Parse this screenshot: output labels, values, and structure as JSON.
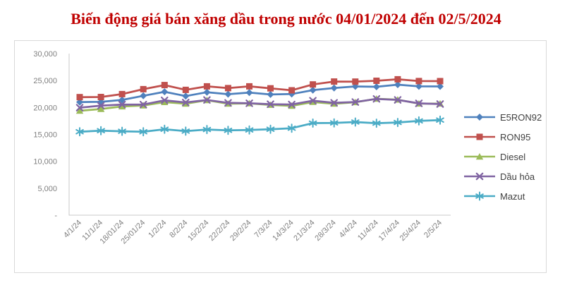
{
  "title": "Biến động giá bán xăng dầu trong nước 04/01/2024 đến 02/5/2024",
  "title_color": "#C00000",
  "chart_data": {
    "type": "line",
    "title": "Biến động giá bán xăng dầu trong nước 04/01/2024 đến 02/5/2024",
    "xlabel": "",
    "ylabel": "",
    "x": [
      "4/1/24",
      "11/1/24",
      "18/01/24",
      "25/01/24",
      "1/2/24",
      "8/2/24",
      "15/2/24",
      "22/2/24",
      "29/2/24",
      "7/3/24",
      "14/3/24",
      "21/3/24",
      "28/3/24",
      "4/4/24",
      "11/4/24",
      "17/4/24",
      "25/4/24",
      "2/5/24"
    ],
    "series": [
      {
        "name": "E5RON92",
        "color": "#4F81BD",
        "marker": "diamond",
        "values": [
          21000,
          21040,
          21410,
          22170,
          22910,
          22120,
          22830,
          22470,
          22750,
          22420,
          22490,
          23210,
          23620,
          23910,
          23840,
          24230,
          23920,
          23910
        ]
      },
      {
        "name": "RON95",
        "color": "#C0504D",
        "marker": "square",
        "values": [
          21920,
          21940,
          22480,
          23400,
          24160,
          23260,
          23920,
          23590,
          23920,
          23550,
          23190,
          24280,
          24810,
          24800,
          24950,
          25230,
          24910,
          24890
        ]
      },
      {
        "name": "Diesel",
        "color": "#9BBB59",
        "marker": "triangle",
        "values": [
          19370,
          19710,
          20190,
          20370,
          20990,
          20700,
          21360,
          20700,
          20770,
          20470,
          20310,
          21010,
          20690,
          20980,
          21610,
          21440,
          20710,
          20710
        ]
      },
      {
        "name": "Dầu hỏa",
        "color": "#8064A2",
        "marker": "x",
        "values": [
          19960,
          20330,
          20540,
          20540,
          21330,
          20920,
          21390,
          20850,
          20780,
          20610,
          20560,
          21260,
          20870,
          21010,
          21590,
          21410,
          20770,
          20630
        ]
      },
      {
        "name": "Mazut",
        "color": "#4BACC6",
        "marker": "asterisk",
        "values": [
          15500,
          15690,
          15570,
          15490,
          15960,
          15600,
          15910,
          15750,
          15820,
          15960,
          16150,
          17100,
          17140,
          17290,
          17080,
          17220,
          17500,
          17660
        ]
      }
    ],
    "ylim": [
      0,
      30000
    ],
    "ytick_step": 5000,
    "ytick_labels": [
      "-",
      "5,000",
      "10,000",
      "15,000",
      "20,000",
      "25,000",
      "30,000"
    ],
    "grid": false,
    "legend_position": "right",
    "axis_color": "#C9C9C9",
    "tick_label_color": "#808080",
    "legend_text_color": "#404040",
    "line_width": 2.75
  }
}
